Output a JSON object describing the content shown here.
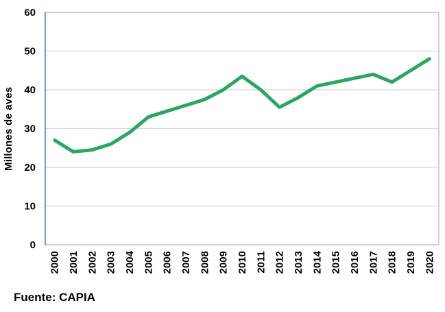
{
  "chart_data": {
    "type": "line",
    "title": "",
    "xlabel": "",
    "ylabel": "Millones de aves",
    "source": "Fuente: CAPIA",
    "categories": [
      "2000",
      "2001",
      "2002",
      "2003",
      "2004",
      "2005",
      "2006",
      "2007",
      "2008",
      "2009",
      "2010",
      "2011",
      "2012",
      "2013",
      "2014",
      "2015",
      "2016",
      "2017",
      "2018",
      "2019",
      "2020"
    ],
    "values": [
      27,
      24,
      24.5,
      26,
      29,
      33,
      34.5,
      36,
      37.5,
      40,
      43.5,
      40,
      35.5,
      38,
      41,
      42,
      43,
      44,
      42,
      45,
      48
    ],
    "ylim": [
      0,
      60
    ],
    "ytick_step": 10,
    "grid": true,
    "legend": "none",
    "colors": {
      "line": "#2aa65e",
      "axis_left": "#7da7c4",
      "plot_border": "#c6c6c6",
      "gridline": "#d8d8d8",
      "text": "#000000"
    }
  }
}
